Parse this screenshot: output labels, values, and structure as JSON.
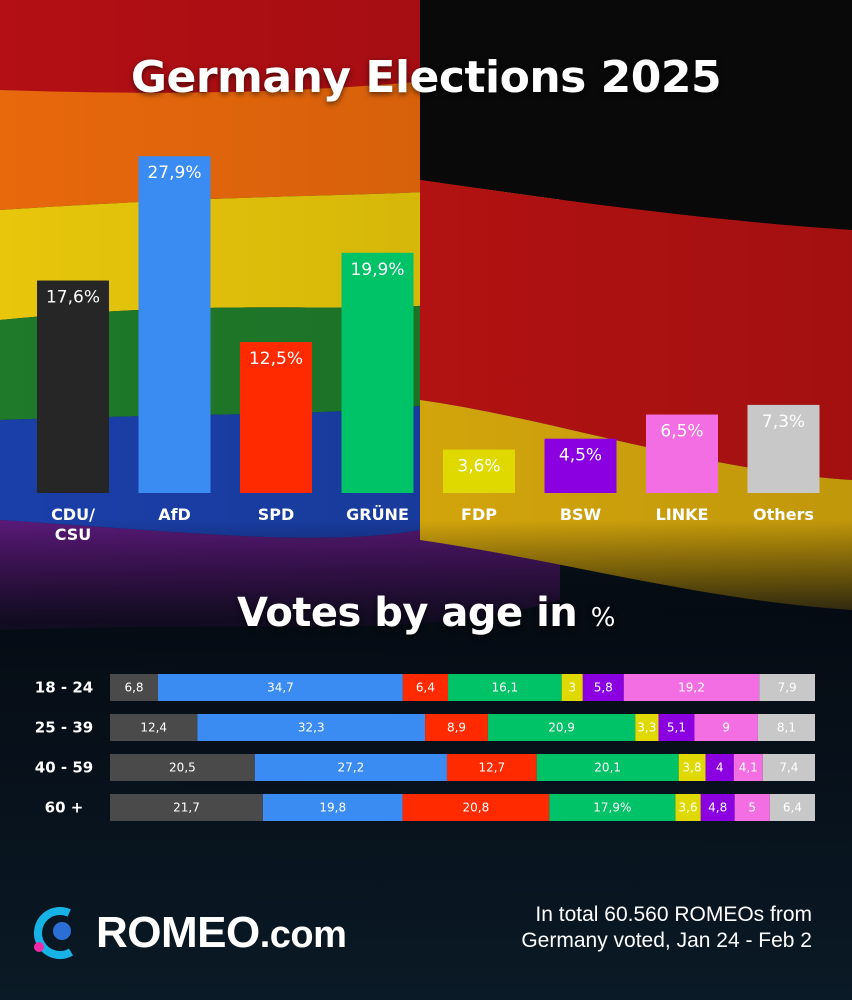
{
  "title": "Germany Elections 2025",
  "age_section": {
    "title": "Votes by age in",
    "unit": "%"
  },
  "chart_data": [
    {
      "type": "bar",
      "title": "Germany Elections 2025",
      "categories": [
        [
          "CDU/",
          "CSU"
        ],
        [
          "AfD"
        ],
        [
          "SPD"
        ],
        [
          "GRÜNE"
        ],
        [
          "FDP"
        ],
        [
          "BSW"
        ],
        [
          "LINKE"
        ],
        [
          "Others"
        ]
      ],
      "values": [
        17.6,
        27.9,
        12.5,
        19.9,
        3.6,
        4.5,
        6.5,
        7.3
      ],
      "value_labels": [
        "17,6%",
        "27,9%",
        "12,5%",
        "19,9%",
        "3,6%",
        "4,5%",
        "6,5%",
        "7,3%"
      ],
      "colors": [
        "#262626",
        "#3b8cf2",
        "#ff2a00",
        "#00c266",
        "#e0d900",
        "#8a00e0",
        "#f36ee3",
        "#c8c8c8"
      ],
      "ylim": [
        0,
        28
      ],
      "xlabel": "",
      "ylabel": "",
      "grid": false
    },
    {
      "type": "bar",
      "stacked": true,
      "orientation": "horizontal",
      "title": "Votes by age in %",
      "categories": [
        "18 - 24",
        "25 - 39",
        "40 - 59",
        "60 +"
      ],
      "parties": [
        "CDU/CSU",
        "AfD",
        "SPD",
        "GRÜNE",
        "FDP",
        "BSW",
        "LINKE",
        "Others"
      ],
      "colors": [
        "#4a4a4a",
        "#3b8cf2",
        "#ff2a00",
        "#00c266",
        "#e0d900",
        "#8a00e0",
        "#f36ee3",
        "#c8c8c8"
      ],
      "rows": [
        {
          "values": [
            6.8,
            34.7,
            6.4,
            16.1,
            3,
            5.8,
            19.2,
            7.9
          ],
          "labels": [
            "6,8",
            "34,7",
            "6,4",
            "16,1",
            "3",
            "5,8",
            "19,2",
            "7,9"
          ]
        },
        {
          "values": [
            12.4,
            32.3,
            8.9,
            20.9,
            3.3,
            5.1,
            9,
            8.1
          ],
          "labels": [
            "12,4",
            "32,3",
            "8,9",
            "20,9",
            "3,3",
            "5,1",
            "9",
            "8,1"
          ]
        },
        {
          "values": [
            20.5,
            27.2,
            12.7,
            20.1,
            3.8,
            4,
            4.1,
            7.4
          ],
          "labels": [
            "20,5",
            "27,2",
            "12,7",
            "20,1",
            "3,8",
            "4",
            "4,1",
            "7,4"
          ]
        },
        {
          "values": [
            21.7,
            19.8,
            20.8,
            17.9,
            3.6,
            4.8,
            5,
            6.4
          ],
          "labels": [
            "21,7",
            "19,8",
            "20,8",
            "17,9%",
            "3,6",
            "4,8",
            "5",
            "6,4"
          ]
        }
      ]
    }
  ],
  "brand": {
    "name": "ROMEO",
    "suffix": ".com"
  },
  "footnote": {
    "line1": "In total 60.560 ROMEOs from",
    "line2": "Germany voted, Jan 24 - Feb 2"
  }
}
